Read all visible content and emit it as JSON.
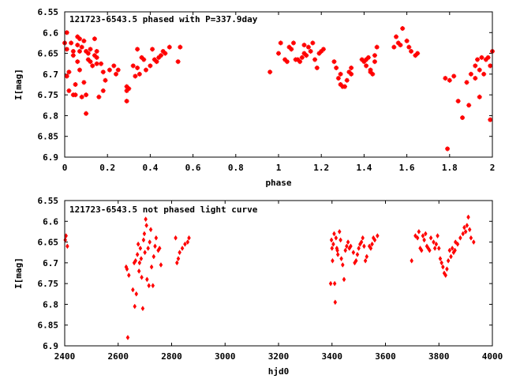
{
  "chart_data": [
    {
      "type": "scatter",
      "title": "121723-6543.5 phased with P=337.9day",
      "xlabel": "phase",
      "ylabel": "I[mag]",
      "xlim": [
        0,
        2
      ],
      "ylim": [
        6.9,
        6.55
      ],
      "y_inverted": true,
      "xticks": [
        "0",
        "0.2",
        "0.4",
        "0.6",
        "0.8",
        "1",
        "1.2",
        "1.4",
        "1.6",
        "1.8",
        "2"
      ],
      "yticks": [
        "6.55",
        "6.6",
        "6.65",
        "6.7",
        "6.75",
        "6.8",
        "6.85",
        "6.9"
      ],
      "marker_color": "#ff0000",
      "marker": "plus-cross",
      "grid": false,
      "points": [
        [
          0.0,
          6.625
        ],
        [
          0.01,
          6.6
        ],
        [
          0.01,
          6.64
        ],
        [
          0.01,
          6.705
        ],
        [
          0.02,
          6.74
        ],
        [
          0.02,
          6.695
        ],
        [
          0.03,
          6.625
        ],
        [
          0.04,
          6.645
        ],
        [
          0.04,
          6.655
        ],
        [
          0.04,
          6.75
        ],
        [
          0.05,
          6.725
        ],
        [
          0.05,
          6.75
        ],
        [
          0.06,
          6.61
        ],
        [
          0.06,
          6.63
        ],
        [
          0.06,
          6.67
        ],
        [
          0.07,
          6.69
        ],
        [
          0.07,
          6.615
        ],
        [
          0.07,
          6.645
        ],
        [
          0.08,
          6.635
        ],
        [
          0.08,
          6.755
        ],
        [
          0.09,
          6.62
        ],
        [
          0.09,
          6.72
        ],
        [
          0.1,
          6.75
        ],
        [
          0.1,
          6.795
        ],
        [
          0.1,
          6.645
        ],
        [
          0.11,
          6.65
        ],
        [
          0.11,
          6.665
        ],
        [
          0.12,
          6.64
        ],
        [
          0.12,
          6.67
        ],
        [
          0.13,
          6.68
        ],
        [
          0.14,
          6.615
        ],
        [
          0.14,
          6.655
        ],
        [
          0.15,
          6.675
        ],
        [
          0.15,
          6.66
        ],
        [
          0.15,
          6.645
        ],
        [
          0.16,
          6.755
        ],
        [
          0.17,
          6.675
        ],
        [
          0.18,
          6.695
        ],
        [
          0.18,
          6.74
        ],
        [
          0.19,
          6.715
        ],
        [
          0.21,
          6.69
        ],
        [
          0.23,
          6.68
        ],
        [
          0.24,
          6.7
        ],
        [
          0.25,
          6.69
        ],
        [
          0.29,
          6.74
        ],
        [
          0.29,
          6.765
        ],
        [
          0.29,
          6.73
        ],
        [
          0.3,
          6.735
        ],
        [
          0.32,
          6.68
        ],
        [
          0.33,
          6.705
        ],
        [
          0.34,
          6.685
        ],
        [
          0.34,
          6.64
        ],
        [
          0.35,
          6.7
        ],
        [
          0.36,
          6.66
        ],
        [
          0.37,
          6.665
        ],
        [
          0.38,
          6.69
        ],
        [
          0.4,
          6.68
        ],
        [
          0.41,
          6.64
        ],
        [
          0.42,
          6.665
        ],
        [
          0.43,
          6.67
        ],
        [
          0.44,
          6.66
        ],
        [
          0.45,
          6.655
        ],
        [
          0.46,
          6.645
        ],
        [
          0.47,
          6.65
        ],
        [
          0.49,
          6.635
        ],
        [
          0.53,
          6.67
        ],
        [
          0.54,
          6.635
        ],
        [
          0.96,
          6.695
        ],
        [
          1.0,
          6.65
        ],
        [
          1.01,
          6.625
        ],
        [
          1.03,
          6.665
        ],
        [
          1.04,
          6.67
        ],
        [
          1.05,
          6.635
        ],
        [
          1.06,
          6.64
        ],
        [
          1.07,
          6.625
        ],
        [
          1.08,
          6.665
        ],
        [
          1.09,
          6.665
        ],
        [
          1.1,
          6.67
        ],
        [
          1.11,
          6.66
        ],
        [
          1.12,
          6.63
        ],
        [
          1.12,
          6.65
        ],
        [
          1.13,
          6.655
        ],
        [
          1.14,
          6.635
        ],
        [
          1.15,
          6.645
        ],
        [
          1.16,
          6.625
        ],
        [
          1.17,
          6.665
        ],
        [
          1.18,
          6.685
        ],
        [
          1.19,
          6.65
        ],
        [
          1.2,
          6.645
        ],
        [
          1.21,
          6.64
        ],
        [
          1.26,
          6.67
        ],
        [
          1.27,
          6.685
        ],
        [
          1.28,
          6.71
        ],
        [
          1.29,
          6.7
        ],
        [
          1.29,
          6.725
        ],
        [
          1.3,
          6.73
        ],
        [
          1.31,
          6.73
        ],
        [
          1.32,
          6.715
        ],
        [
          1.33,
          6.695
        ],
        [
          1.34,
          6.685
        ],
        [
          1.34,
          6.7
        ],
        [
          1.39,
          6.665
        ],
        [
          1.4,
          6.67
        ],
        [
          1.41,
          6.68
        ],
        [
          1.41,
          6.665
        ],
        [
          1.42,
          6.66
        ],
        [
          1.43,
          6.69
        ],
        [
          1.43,
          6.695
        ],
        [
          1.44,
          6.7
        ],
        [
          1.45,
          6.655
        ],
        [
          1.45,
          6.67
        ],
        [
          1.46,
          6.635
        ],
        [
          1.54,
          6.635
        ],
        [
          1.55,
          6.61
        ],
        [
          1.56,
          6.625
        ],
        [
          1.57,
          6.63
        ],
        [
          1.58,
          6.59
        ],
        [
          1.6,
          6.62
        ],
        [
          1.61,
          6.635
        ],
        [
          1.62,
          6.645
        ],
        [
          1.64,
          6.655
        ],
        [
          1.65,
          6.65
        ],
        [
          1.78,
          6.71
        ],
        [
          1.79,
          6.88
        ],
        [
          1.8,
          6.715
        ],
        [
          1.82,
          6.705
        ],
        [
          1.84,
          6.765
        ],
        [
          1.86,
          6.805
        ],
        [
          1.88,
          6.72
        ],
        [
          1.89,
          6.775
        ],
        [
          1.9,
          6.7
        ],
        [
          1.92,
          6.71
        ],
        [
          1.92,
          6.68
        ],
        [
          1.93,
          6.665
        ],
        [
          1.94,
          6.69
        ],
        [
          1.94,
          6.755
        ],
        [
          1.95,
          6.66
        ],
        [
          1.96,
          6.7
        ],
        [
          1.97,
          6.665
        ],
        [
          1.98,
          6.66
        ],
        [
          1.99,
          6.68
        ],
        [
          1.99,
          6.81
        ],
        [
          2.0,
          6.645
        ]
      ]
    },
    {
      "type": "scatter",
      "title": "121723-6543.5 not phased light curve",
      "xlabel": "hjd0",
      "ylabel": "I[mag]",
      "xlim": [
        2400,
        4000
      ],
      "ylim": [
        6.9,
        6.55
      ],
      "y_inverted": true,
      "xticks": [
        "2400",
        "2600",
        "2800",
        "3000",
        "3200",
        "3400",
        "3600",
        "3800",
        "4000"
      ],
      "yticks": [
        "6.55",
        "6.6",
        "6.65",
        "6.7",
        "6.75",
        "6.8",
        "6.85",
        "6.9"
      ],
      "marker_color": "#ff0000",
      "marker": "diamond",
      "grid": false,
      "points": [
        [
          2402,
          6.645
        ],
        [
          2405,
          6.635
        ],
        [
          2410,
          6.66
        ],
        [
          2630,
          6.71
        ],
        [
          2633,
          6.715
        ],
        [
          2636,
          6.88
        ],
        [
          2640,
          6.73
        ],
        [
          2655,
          6.765
        ],
        [
          2660,
          6.7
        ],
        [
          2662,
          6.805
        ],
        [
          2665,
          6.695
        ],
        [
          2668,
          6.775
        ],
        [
          2672,
          6.68
        ],
        [
          2675,
          6.655
        ],
        [
          2678,
          6.72
        ],
        [
          2680,
          6.7
        ],
        [
          2683,
          6.665
        ],
        [
          2686,
          6.69
        ],
        [
          2688,
          6.735
        ],
        [
          2692,
          6.81
        ],
        [
          2695,
          6.645
        ],
        [
          2698,
          6.63
        ],
        [
          2700,
          6.675
        ],
        [
          2703,
          6.595
        ],
        [
          2706,
          6.61
        ],
        [
          2708,
          6.74
        ],
        [
          2712,
          6.665
        ],
        [
          2715,
          6.755
        ],
        [
          2718,
          6.65
        ],
        [
          2722,
          6.62
        ],
        [
          2725,
          6.71
        ],
        [
          2730,
          6.755
        ],
        [
          2733,
          6.685
        ],
        [
          2738,
          6.66
        ],
        [
          2742,
          6.64
        ],
        [
          2750,
          6.67
        ],
        [
          2755,
          6.665
        ],
        [
          2760,
          6.705
        ],
        [
          2815,
          6.64
        ],
        [
          2820,
          6.7
        ],
        [
          2825,
          6.69
        ],
        [
          2830,
          6.675
        ],
        [
          2840,
          6.665
        ],
        [
          2850,
          6.655
        ],
        [
          2860,
          6.65
        ],
        [
          2865,
          6.64
        ],
        [
          3395,
          6.75
        ],
        [
          3398,
          6.645
        ],
        [
          3400,
          6.665
        ],
        [
          3402,
          6.695
        ],
        [
          3405,
          6.655
        ],
        [
          3408,
          6.63
        ],
        [
          3410,
          6.75
        ],
        [
          3412,
          6.795
        ],
        [
          3415,
          6.64
        ],
        [
          3418,
          6.665
        ],
        [
          3420,
          6.67
        ],
        [
          3422,
          6.68
        ],
        [
          3428,
          6.625
        ],
        [
          3432,
          6.645
        ],
        [
          3435,
          6.69
        ],
        [
          3440,
          6.705
        ],
        [
          3445,
          6.74
        ],
        [
          3450,
          6.67
        ],
        [
          3455,
          6.66
        ],
        [
          3460,
          6.65
        ],
        [
          3465,
          6.665
        ],
        [
          3470,
          6.66
        ],
        [
          3480,
          6.675
        ],
        [
          3485,
          6.7
        ],
        [
          3490,
          6.695
        ],
        [
          3495,
          6.68
        ],
        [
          3500,
          6.665
        ],
        [
          3505,
          6.655
        ],
        [
          3510,
          6.65
        ],
        [
          3515,
          6.64
        ],
        [
          3520,
          6.66
        ],
        [
          3525,
          6.695
        ],
        [
          3530,
          6.685
        ],
        [
          3540,
          6.66
        ],
        [
          3545,
          6.665
        ],
        [
          3550,
          6.655
        ],
        [
          3555,
          6.64
        ],
        [
          3560,
          6.645
        ],
        [
          3570,
          6.635
        ],
        [
          3698,
          6.695
        ],
        [
          3712,
          6.635
        ],
        [
          3720,
          6.64
        ],
        [
          3725,
          6.625
        ],
        [
          3730,
          6.665
        ],
        [
          3735,
          6.67
        ],
        [
          3740,
          6.635
        ],
        [
          3745,
          6.645
        ],
        [
          3750,
          6.63
        ],
        [
          3755,
          6.66
        ],
        [
          3760,
          6.665
        ],
        [
          3765,
          6.67
        ],
        [
          3770,
          6.64
        ],
        [
          3780,
          6.65
        ],
        [
          3785,
          6.665
        ],
        [
          3790,
          6.655
        ],
        [
          3795,
          6.635
        ],
        [
          3800,
          6.665
        ],
        [
          3805,
          6.69
        ],
        [
          3810,
          6.7
        ],
        [
          3815,
          6.71
        ],
        [
          3820,
          6.725
        ],
        [
          3825,
          6.73
        ],
        [
          3830,
          6.715
        ],
        [
          3835,
          6.695
        ],
        [
          3840,
          6.67
        ],
        [
          3845,
          6.685
        ],
        [
          3850,
          6.665
        ],
        [
          3855,
          6.675
        ],
        [
          3860,
          6.67
        ],
        [
          3862,
          6.65
        ],
        [
          3870,
          6.655
        ],
        [
          3880,
          6.64
        ],
        [
          3890,
          6.63
        ],
        [
          3895,
          6.615
        ],
        [
          3900,
          6.625
        ],
        [
          3905,
          6.61
        ],
        [
          3910,
          6.59
        ],
        [
          3915,
          6.62
        ],
        [
          3920,
          6.64
        ],
        [
          3930,
          6.65
        ]
      ]
    }
  ]
}
